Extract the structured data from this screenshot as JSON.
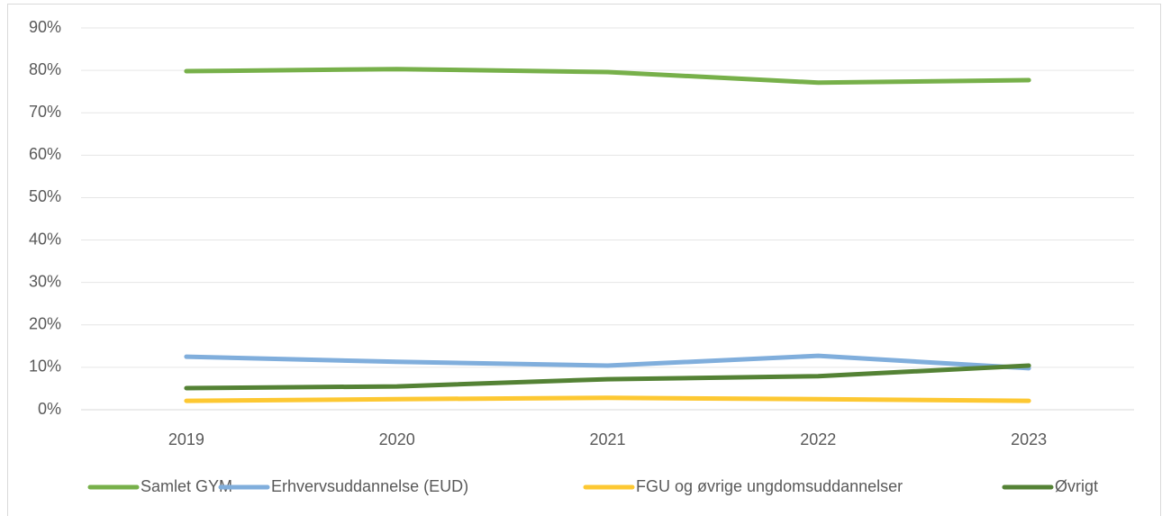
{
  "chart_data": {
    "type": "line",
    "categories": [
      "2019",
      "2020",
      "2021",
      "2022",
      "2023"
    ],
    "series": [
      {
        "name": "Samlet GYM",
        "color": "#77b04a",
        "values": [
          79.8,
          80.3,
          79.6,
          77.1,
          77.7
        ]
      },
      {
        "name": "Erhvervsuddannelse (EUD)",
        "color": "#80aedc",
        "values": [
          12.5,
          11.3,
          10.4,
          12.7,
          9.8
        ]
      },
      {
        "name": "FGU og øvrige ungdomsuddannelser",
        "color": "#fdc832",
        "values": [
          2.1,
          2.5,
          2.8,
          2.5,
          2.1
        ]
      },
      {
        "name": "Øvrigt",
        "color": "#548235",
        "values": [
          5.1,
          5.5,
          7.2,
          7.9,
          10.4
        ]
      }
    ],
    "ylim": [
      0,
      90
    ],
    "yticks": [
      {
        "value": 0,
        "label": "0%"
      },
      {
        "value": 10,
        "label": "10%"
      },
      {
        "value": 20,
        "label": "20%"
      },
      {
        "value": 30,
        "label": "30%"
      },
      {
        "value": 40,
        "label": "40%"
      },
      {
        "value": 50,
        "label": "50%"
      },
      {
        "value": 60,
        "label": "60%"
      },
      {
        "value": 70,
        "label": "70%"
      },
      {
        "value": 80,
        "label": "80%"
      },
      {
        "value": 90,
        "label": "90%"
      }
    ],
    "grid": true,
    "legend": "bottom"
  }
}
